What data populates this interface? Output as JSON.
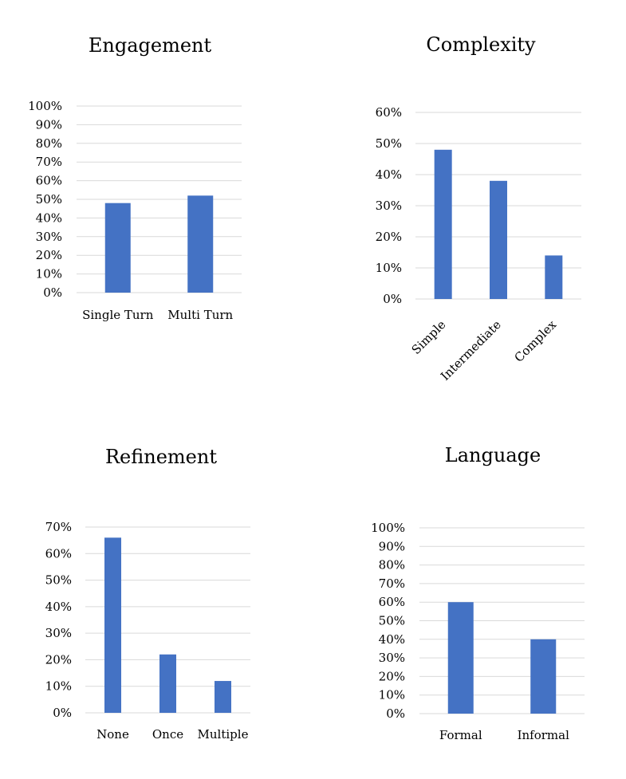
{
  "chart_data": [
    {
      "type": "bar",
      "title": "Engagement",
      "categories": [
        "Single Turn",
        "Multi Turn"
      ],
      "values": [
        48,
        52
      ],
      "unit": "%",
      "ylim": [
        0,
        100
      ],
      "yticks": [
        0,
        10,
        20,
        30,
        40,
        50,
        60,
        70,
        80,
        90,
        100
      ],
      "ytick_labels": [
        "0%",
        "10%",
        "20%",
        "30%",
        "40%",
        "50%",
        "60%",
        "70%",
        "80%",
        "90%",
        "100%"
      ],
      "grid": true,
      "color": "#4472c4"
    },
    {
      "type": "bar",
      "title": "Complexity",
      "categories": [
        "Simple",
        "Intermediate",
        "Complex"
      ],
      "values": [
        48,
        38,
        14
      ],
      "unit": "%",
      "ylim": [
        0,
        60
      ],
      "yticks": [
        0,
        10,
        20,
        30,
        40,
        50,
        60
      ],
      "ytick_labels": [
        "0%",
        "10%",
        "20%",
        "30%",
        "40%",
        "50%",
        "60%"
      ],
      "grid": true,
      "color": "#4472c4"
    },
    {
      "type": "bar",
      "title": "Refinement",
      "categories": [
        "None",
        "Once",
        "Multiple"
      ],
      "values": [
        66,
        22,
        12
      ],
      "unit": "%",
      "ylim": [
        0,
        70
      ],
      "yticks": [
        0,
        10,
        20,
        30,
        40,
        50,
        60,
        70
      ],
      "ytick_labels": [
        "0%",
        "10%",
        "20%",
        "30%",
        "40%",
        "50%",
        "60%",
        "70%"
      ],
      "grid": true,
      "color": "#4472c4"
    },
    {
      "type": "bar",
      "title": "Language",
      "categories": [
        "Formal",
        "Informal"
      ],
      "values": [
        60,
        40
      ],
      "unit": "%",
      "ylim": [
        0,
        100
      ],
      "yticks": [
        0,
        10,
        20,
        30,
        40,
        50,
        60,
        70,
        80,
        90,
        100
      ],
      "ytick_labels": [
        "0%",
        "10%",
        "20%",
        "30%",
        "40%",
        "50%",
        "60%",
        "70%",
        "80%",
        "90%",
        "100%"
      ],
      "grid": true,
      "color": "#4472c4"
    }
  ]
}
